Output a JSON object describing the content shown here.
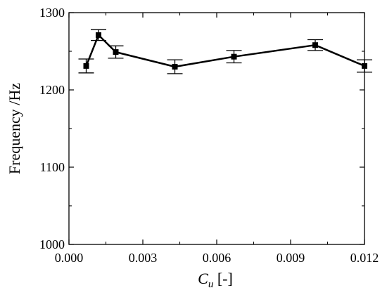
{
  "chart_data": {
    "type": "line",
    "title": "",
    "xlabel_main": "C",
    "xlabel_sub": "u",
    "xlabel_unit": " [-]",
    "ylabel": "Frequency /Hz",
    "xlim": [
      0.0,
      0.012
    ],
    "ylim": [
      1000,
      1300
    ],
    "xticks": [
      0.0,
      0.003,
      0.006,
      0.009,
      0.012
    ],
    "xtick_labels": [
      "0.000",
      "0.003",
      "0.006",
      "0.009",
      "0.012"
    ],
    "yticks": [
      1000,
      1100,
      1200,
      1300
    ],
    "ytick_labels": [
      "1000",
      "1100",
      "1200",
      "1300"
    ],
    "grid": false,
    "series": [
      {
        "x": [
          0.0007,
          0.0012,
          0.0019,
          0.0043,
          0.0067,
          0.01,
          0.012
        ],
        "y": [
          1231,
          1271,
          1249,
          1230,
          1243,
          1258,
          1231
        ],
        "error": [
          9,
          7,
          8,
          9,
          8,
          7,
          8
        ],
        "color": "#000000",
        "marker": "square"
      }
    ]
  }
}
